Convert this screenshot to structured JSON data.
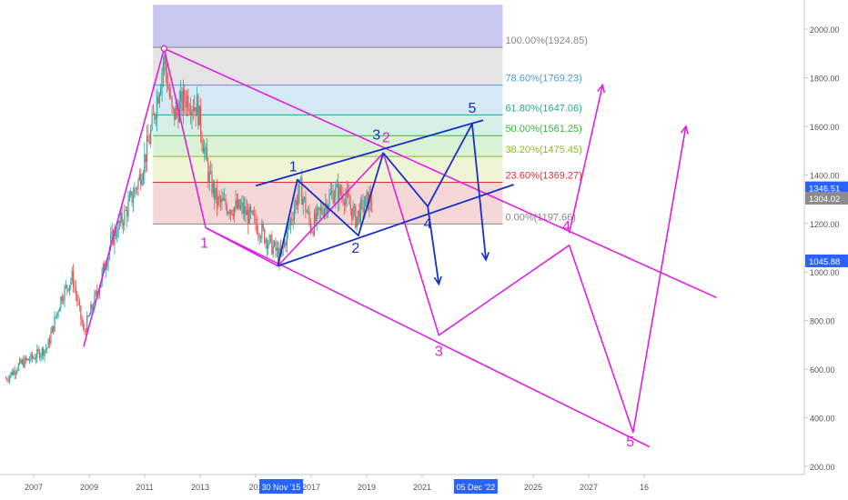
{
  "chart_data": {
    "type": "candlestick",
    "title": "",
    "xlabel": "",
    "ylabel": "",
    "ylim": [
      200,
      2100
    ],
    "x_ticks": [
      {
        "label": "2007",
        "year": 2007
      },
      {
        "label": "2009",
        "year": 2009
      },
      {
        "label": "2011",
        "year": 2011
      },
      {
        "label": "2013",
        "year": 2013
      },
      {
        "label": "201",
        "year": 2015
      },
      {
        "label": "2017",
        "year": 2017
      },
      {
        "label": "2019",
        "year": 2019
      },
      {
        "label": "2021",
        "year": 2021
      },
      {
        "label": "2025",
        "year": 2025
      },
      {
        "label": "2027",
        "year": 2027
      },
      {
        "label": "16",
        "year": 2029
      }
    ],
    "x_flags": [
      {
        "label": "30 Nov '15",
        "year": 2015.92
      },
      {
        "label": "05 Dec '22",
        "year": 2022.93
      }
    ],
    "y_ticks": [
      {
        "label": "2000.00",
        "value": 2000
      },
      {
        "label": "1800.00",
        "value": 1800
      },
      {
        "label": "1600.00",
        "value": 1600
      },
      {
        "label": "1400.00",
        "value": 1400
      },
      {
        "label": "1200.00",
        "value": 1200
      },
      {
        "label": "1000.00",
        "value": 1000
      },
      {
        "label": "800.00",
        "value": 800
      },
      {
        "label": "600.00",
        "value": 600
      },
      {
        "label": "400.00",
        "value": 400
      },
      {
        "label": "200.00",
        "value": 200
      }
    ],
    "price_flags": [
      {
        "label": "1346.51",
        "value": 1346.51,
        "color": "#2962ff"
      },
      {
        "label": "1304.02",
        "value": 1304.02,
        "color": "#8c8c8c"
      },
      {
        "label": "1045.88",
        "value": 1045.88,
        "color": "#2962ff"
      }
    ],
    "fib_levels": [
      {
        "label": "100.00%(1924.85)",
        "value": 1924.85,
        "color": "#888888"
      },
      {
        "label": "78.60%(1769.23)",
        "value": 1769.23,
        "color": "#4a9fd0"
      },
      {
        "label": "61.80%(1647.06)",
        "value": 1647.06,
        "color": "#22aa88"
      },
      {
        "label": "50.00%(1561.25)",
        "value": 1561.25,
        "color": "#33bb33"
      },
      {
        "label": "38.20%(1475.45)",
        "value": 1475.45,
        "color": "#88bb22"
      },
      {
        "label": "23.60%(1369.27)",
        "value": 1369.27,
        "color": "#e03030"
      },
      {
        "label": "0.00%(1197.66)",
        "value": 1197.66,
        "color": "#888888"
      }
    ],
    "fib_top_zone": {
      "value": 2100,
      "color": "#c6c8ef"
    },
    "fib_zones": [
      {
        "from": 1924.85,
        "to": 1769.23,
        "color": "#e4e4e4"
      },
      {
        "from": 1769.23,
        "to": 1647.06,
        "color": "#d4e8f6"
      },
      {
        "from": 1647.06,
        "to": 1561.25,
        "color": "#d6f0e8"
      },
      {
        "from": 1561.25,
        "to": 1475.45,
        "color": "#daf1d5"
      },
      {
        "from": 1475.45,
        "to": 1369.27,
        "color": "#eef4d5"
      },
      {
        "from": 1369.27,
        "to": 1197.66,
        "color": "#f6d7d7"
      }
    ],
    "fib_range": {
      "x_start": 2011.3,
      "x_end": 2023.9
    },
    "magenta_path": {
      "color": "#e020e0",
      "points": [
        [
          2008.8,
          693
        ],
        [
          2011.7,
          1920
        ],
        [
          2013.2,
          1182
        ],
        [
          2015.8,
          1025
        ],
        [
          2019.6,
          1490
        ],
        [
          2021.6,
          740
        ],
        [
          2026.3,
          1110
        ],
        [
          2028.6,
          340
        ],
        [
          2030.5,
          1600
        ]
      ]
    },
    "magenta_extra": {
      "color": "#e020e0",
      "points": [
        [
          2026.3,
          1160
        ],
        [
          2027.5,
          1770
        ]
      ]
    },
    "magenta_channel": [
      {
        "points": [
          [
            2011.7,
            1920
          ],
          [
            2031.6,
            895
          ]
        ]
      },
      {
        "points": [
          [
            2013.2,
            1182
          ],
          [
            2029.2,
            280
          ]
        ]
      }
    ],
    "magenta_labels": [
      {
        "label": "1",
        "x": 2013.15,
        "value": 1100
      },
      {
        "label": "2",
        "x": 2019.7,
        "value": 1535
      },
      {
        "label": "3",
        "x": 2021.6,
        "value": 655
      },
      {
        "label": "4",
        "x": 2026.2,
        "value": 1170
      },
      {
        "label": "5",
        "x": 2028.5,
        "value": 283
      }
    ],
    "blue_path": {
      "color": "#1830c8",
      "points": [
        [
          2015.8,
          1025
        ],
        [
          2016.5,
          1380
        ],
        [
          2018.7,
          1150
        ],
        [
          2019.6,
          1490
        ],
        [
          2021.2,
          1270
        ],
        [
          2022.8,
          1610
        ],
        [
          2023.3,
          1050
        ]
      ]
    },
    "blue_arrow": {
      "color": "#1830c8",
      "points": [
        [
          2021.2,
          1270
        ],
        [
          2021.6,
          950
        ]
      ]
    },
    "blue_channel": [
      {
        "points": [
          [
            2015.8,
            1025
          ],
          [
            2024.3,
            1360
          ]
        ]
      },
      {
        "points": [
          [
            2015.0,
            1355
          ],
          [
            2023.2,
            1625
          ]
        ]
      }
    ],
    "blue_labels": [
      {
        "label": "1",
        "x": 2016.35,
        "value": 1415
      },
      {
        "label": "2",
        "x": 2018.6,
        "value": 1080
      },
      {
        "label": "3",
        "x": 2019.35,
        "value": 1545
      },
      {
        "label": "4",
        "x": 2021.2,
        "value": 1180
      },
      {
        "label": "5",
        "x": 2022.8,
        "value": 1655
      }
    ],
    "price_anchors": [
      [
        2006.0,
        560
      ],
      [
        2006.5,
        620
      ],
      [
        2007.0,
        650
      ],
      [
        2007.5,
        690
      ],
      [
        2008.0,
        900
      ],
      [
        2008.4,
        980
      ],
      [
        2008.8,
        750
      ],
      [
        2009.3,
        920
      ],
      [
        2009.8,
        1130
      ],
      [
        2010.3,
        1240
      ],
      [
        2010.8,
        1380
      ],
      [
        2011.2,
        1560
      ],
      [
        2011.7,
        1880
      ],
      [
        2012.0,
        1640
      ],
      [
        2012.5,
        1720
      ],
      [
        2012.9,
        1680
      ],
      [
        2013.3,
        1400
      ],
      [
        2013.6,
        1290
      ],
      [
        2014.0,
        1270
      ],
      [
        2014.5,
        1260
      ],
      [
        2015.0,
        1200
      ],
      [
        2015.5,
        1120
      ],
      [
        2015.9,
        1060
      ],
      [
        2016.3,
        1230
      ],
      [
        2016.6,
        1350
      ],
      [
        2017.0,
        1180
      ],
      [
        2017.4,
        1260
      ],
      [
        2017.8,
        1330
      ],
      [
        2018.2,
        1320
      ],
      [
        2018.6,
        1220
      ],
      [
        2019.0,
        1290
      ],
      [
        2019.2,
        1300
      ]
    ]
  }
}
